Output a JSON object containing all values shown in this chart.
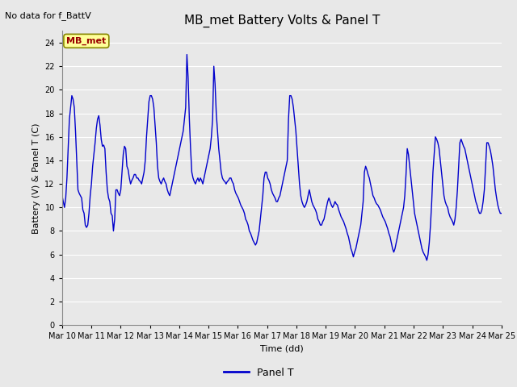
{
  "title": "MB_met Battery Volts & Panel T",
  "no_data_text": "No data for f_BattV",
  "ylabel": "Battery (V) & Panel T (C)",
  "xlabel": "Time (dd)",
  "ylim": [
    0,
    25
  ],
  "yticks": [
    0,
    2,
    4,
    6,
    8,
    10,
    12,
    14,
    16,
    18,
    20,
    22,
    24
  ],
  "line_color": "#0000cc",
  "line_width": 1.0,
  "bg_color": "#e8e8e8",
  "fig_bg_color": "#e8e8e8",
  "legend_label": "Panel T",
  "station_label": "MB_met",
  "panel_t_data": [
    11.0,
    10.5,
    10.0,
    10.8,
    12.5,
    15.0,
    17.5,
    18.5,
    19.5,
    19.2,
    18.5,
    16.5,
    14.0,
    11.5,
    11.2,
    11.0,
    10.8,
    9.8,
    9.5,
    8.5,
    8.3,
    8.5,
    9.5,
    11.0,
    12.0,
    13.5,
    14.5,
    15.5,
    16.7,
    17.5,
    17.8,
    17.0,
    15.8,
    15.2,
    15.3,
    15.0,
    13.0,
    11.5,
    10.8,
    10.5,
    9.5,
    9.3,
    8.0,
    9.0,
    11.5,
    11.5,
    11.2,
    11.0,
    11.5,
    13.0,
    14.5,
    15.2,
    15.0,
    13.5,
    13.2,
    12.5,
    12.0,
    12.3,
    12.5,
    12.8,
    12.8,
    12.5,
    12.5,
    12.3,
    12.2,
    12.0,
    12.5,
    13.0,
    14.0,
    16.0,
    17.5,
    19.0,
    19.5,
    19.5,
    19.2,
    18.5,
    17.0,
    15.5,
    13.5,
    12.5,
    12.2,
    12.0,
    12.3,
    12.5,
    12.2,
    12.0,
    11.5,
    11.2,
    11.0,
    11.5,
    12.0,
    12.5,
    13.0,
    13.5,
    14.0,
    14.5,
    15.0,
    15.5,
    16.0,
    16.5,
    17.5,
    18.5,
    23.0,
    21.0,
    17.5,
    15.0,
    13.0,
    12.5,
    12.2,
    12.0,
    12.3,
    12.5,
    12.2,
    12.5,
    12.3,
    12.0,
    12.5,
    13.0,
    13.5,
    14.0,
    14.5,
    15.0,
    16.0,
    17.5,
    22.0,
    20.5,
    18.0,
    16.5,
    15.0,
    14.0,
    13.0,
    12.5,
    12.3,
    12.2,
    12.0,
    12.2,
    12.3,
    12.5,
    12.5,
    12.2,
    12.0,
    11.5,
    11.2,
    11.0,
    10.8,
    10.5,
    10.2,
    10.0,
    9.8,
    9.5,
    9.0,
    8.8,
    8.5,
    8.0,
    7.8,
    7.5,
    7.2,
    7.0,
    6.8,
    7.0,
    7.5,
    8.0,
    9.0,
    10.0,
    11.0,
    12.5,
    13.0,
    13.0,
    12.5,
    12.3,
    12.0,
    11.5,
    11.2,
    11.0,
    10.8,
    10.5,
    10.5,
    10.8,
    11.0,
    11.5,
    12.0,
    12.5,
    13.0,
    13.5,
    14.0,
    17.5,
    19.5,
    19.5,
    19.2,
    18.5,
    17.5,
    16.5,
    15.0,
    13.5,
    12.0,
    11.0,
    10.5,
    10.2,
    10.0,
    10.2,
    10.5,
    11.0,
    11.5,
    11.0,
    10.5,
    10.2,
    10.0,
    9.8,
    9.5,
    9.0,
    8.8,
    8.5,
    8.5,
    8.8,
    9.0,
    9.5,
    10.0,
    10.5,
    10.8,
    10.5,
    10.2,
    10.0,
    10.2,
    10.5,
    10.3,
    10.2,
    9.8,
    9.5,
    9.2,
    9.0,
    8.8,
    8.5,
    8.2,
    7.8,
    7.5,
    7.0,
    6.5,
    6.2,
    5.8,
    6.2,
    6.5,
    7.0,
    7.5,
    8.0,
    8.5,
    9.5,
    10.5,
    13.0,
    13.5,
    13.2,
    12.8,
    12.5,
    12.0,
    11.5,
    11.0,
    10.8,
    10.5,
    10.3,
    10.2,
    10.0,
    9.8,
    9.5,
    9.2,
    9.0,
    8.8,
    8.5,
    8.2,
    7.8,
    7.5,
    7.0,
    6.5,
    6.2,
    6.5,
    7.0,
    7.5,
    8.0,
    8.5,
    9.0,
    9.5,
    10.0,
    11.0,
    12.8,
    15.0,
    14.5,
    13.5,
    12.5,
    11.5,
    10.5,
    9.5,
    9.0,
    8.5,
    8.0,
    7.5,
    7.0,
    6.5,
    6.2,
    6.0,
    5.8,
    5.5,
    6.0,
    7.0,
    8.5,
    10.5,
    13.0,
    14.5,
    16.0,
    15.8,
    15.5,
    15.0,
    14.0,
    13.0,
    12.0,
    11.0,
    10.5,
    10.2,
    10.0,
    9.5,
    9.2,
    9.0,
    8.8,
    8.5,
    9.0,
    10.0,
    11.5,
    13.5,
    15.5,
    15.8,
    15.5,
    15.2,
    15.0,
    14.5,
    14.0,
    13.5,
    13.0,
    12.5,
    12.0,
    11.5,
    11.0,
    10.5,
    10.2,
    9.8,
    9.5,
    9.5,
    9.8,
    10.5,
    11.5,
    13.5,
    15.5,
    15.5,
    15.2,
    14.8,
    14.2,
    13.5,
    12.5,
    11.5,
    10.8,
    10.2,
    9.8,
    9.5,
    9.5
  ]
}
